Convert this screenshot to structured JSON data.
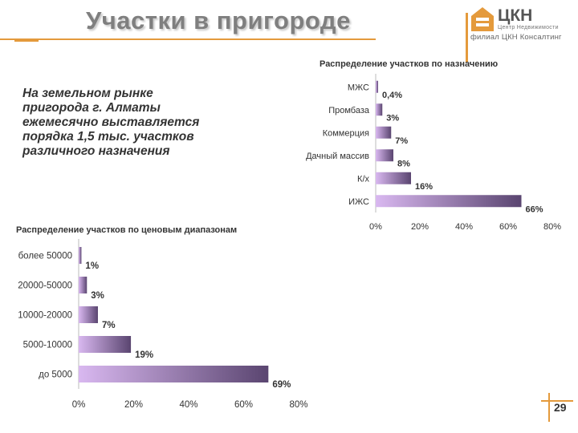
{
  "header": {
    "title": "Участки в пригороде",
    "logo_name": "ЦКН",
    "logo_sub1": "Центр Недвижимости",
    "logo_sub2": "филиал ЦКН Консалтинг"
  },
  "intro_text": "На земельном рынке\nпригорода г. Алматы\nежемесячно выставляется\nпорядка 1,5 тыс. участков\nразличного назначения",
  "page_number": "29",
  "colors": {
    "accent": "#e49a3c",
    "bar_light": "#d9b8f0",
    "bar_dark": "#5a4570"
  },
  "chart_data": [
    {
      "type": "bar",
      "orientation": "horizontal",
      "title": "Распределение участков по назначению",
      "categories": [
        "МЖС",
        "Промбаза",
        "Коммерция",
        "Дачный массив",
        "К/х",
        "ИЖС"
      ],
      "values": [
        0.4,
        3,
        7,
        8,
        16,
        66
      ],
      "value_labels": [
        "0,4%",
        "3%",
        "7%",
        "8%",
        "16%",
        "66%"
      ],
      "xlim": [
        0,
        80
      ],
      "ticks": [
        "0%",
        "20%",
        "40%",
        "60%",
        "80%"
      ],
      "grid": false
    },
    {
      "type": "bar",
      "orientation": "horizontal",
      "title": "Распределение участков по ценовым диапазонам",
      "categories": [
        "более 50000",
        "20000-50000",
        "10000-20000",
        "5000-10000",
        "до 5000"
      ],
      "values": [
        1,
        3,
        7,
        19,
        69
      ],
      "value_labels": [
        "1%",
        "3%",
        "7%",
        "19%",
        "69%"
      ],
      "xlim": [
        0,
        80
      ],
      "ticks": [
        "0%",
        "20%",
        "40%",
        "60%",
        "80%"
      ],
      "grid": false
    }
  ]
}
